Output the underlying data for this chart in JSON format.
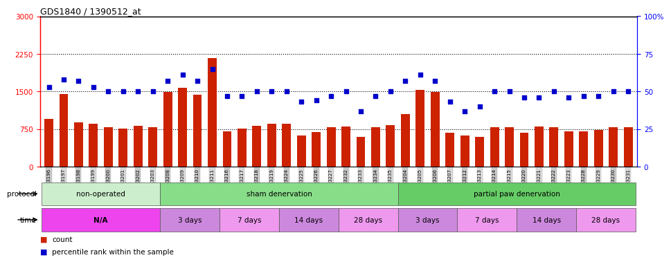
{
  "title": "GDS1840 / 1390512_at",
  "samples": [
    "GSM53196",
    "GSM53197",
    "GSM53198",
    "GSM53199",
    "GSM53200",
    "GSM53201",
    "GSM53202",
    "GSM53203",
    "GSM53208",
    "GSM53209",
    "GSM53210",
    "GSM53211",
    "GSM53216",
    "GSM53217",
    "GSM53218",
    "GSM53219",
    "GSM53224",
    "GSM53225",
    "GSM53226",
    "GSM53227",
    "GSM53232",
    "GSM53233",
    "GSM53234",
    "GSM53235",
    "GSM53204",
    "GSM53205",
    "GSM53206",
    "GSM53207",
    "GSM53212",
    "GSM53213",
    "GSM53214",
    "GSM53215",
    "GSM53220",
    "GSM53221",
    "GSM53222",
    "GSM53223",
    "GSM53228",
    "GSM53229",
    "GSM53230",
    "GSM53231"
  ],
  "counts": [
    950,
    1450,
    880,
    855,
    780,
    762,
    820,
    780,
    1490,
    1570,
    1435,
    2160,
    710,
    762,
    820,
    855,
    855,
    620,
    695,
    790,
    800,
    590,
    790,
    825,
    1055,
    1535,
    1490,
    673,
    625,
    590,
    780,
    793,
    673,
    800,
    780,
    703,
    703,
    735,
    793,
    780
  ],
  "percentile": [
    53,
    58,
    57,
    53,
    50,
    50,
    50,
    50,
    57,
    61,
    57,
    65,
    47,
    47,
    50,
    50,
    50,
    43,
    44,
    47,
    50,
    37,
    47,
    50,
    57,
    61,
    57,
    43,
    37,
    40,
    50,
    50,
    46,
    46,
    50,
    46,
    47,
    47,
    50,
    50
  ],
  "ylim_left": [
    0,
    3000
  ],
  "ylim_right": [
    0,
    100
  ],
  "yticks_left": [
    0,
    750,
    1500,
    2250,
    3000
  ],
  "yticks_right": [
    0,
    25,
    50,
    75,
    100
  ],
  "ytick_right_labels": [
    "0",
    "25",
    "50",
    "75",
    "100%"
  ],
  "bar_color": "#cc2200",
  "dot_color": "#0000cc",
  "dotted_lines": [
    750,
    1500,
    2250
  ],
  "protocol_groups": [
    {
      "label": "non-operated",
      "start": 0,
      "end": 8,
      "color": "#cceecc"
    },
    {
      "label": "sham denervation",
      "start": 8,
      "end": 24,
      "color": "#88dd88"
    },
    {
      "label": "partial paw denervation",
      "start": 24,
      "end": 40,
      "color": "#66cc66"
    }
  ],
  "time_groups": [
    {
      "label": "N/A",
      "start": 0,
      "end": 8,
      "color": "#ee44ee",
      "bold": true
    },
    {
      "label": "3 days",
      "start": 8,
      "end": 12,
      "color": "#cc88dd",
      "bold": false
    },
    {
      "label": "7 days",
      "start": 12,
      "end": 16,
      "color": "#ee99ee",
      "bold": false
    },
    {
      "label": "14 days",
      "start": 16,
      "end": 20,
      "color": "#cc88dd",
      "bold": false
    },
    {
      "label": "28 days",
      "start": 20,
      "end": 24,
      "color": "#ee99ee",
      "bold": false
    },
    {
      "label": "3 days",
      "start": 24,
      "end": 28,
      "color": "#cc88dd",
      "bold": false
    },
    {
      "label": "7 days",
      "start": 28,
      "end": 32,
      "color": "#ee99ee",
      "bold": false
    },
    {
      "label": "14 days",
      "start": 32,
      "end": 36,
      "color": "#cc88dd",
      "bold": false
    },
    {
      "label": "28 days",
      "start": 36,
      "end": 40,
      "color": "#ee99ee",
      "bold": false
    }
  ],
  "legend_items": [
    {
      "color": "#cc2200",
      "label": "count"
    },
    {
      "color": "#0000cc",
      "label": "percentile rank within the sample"
    }
  ],
  "tick_bg_color": "#d0d0d0"
}
